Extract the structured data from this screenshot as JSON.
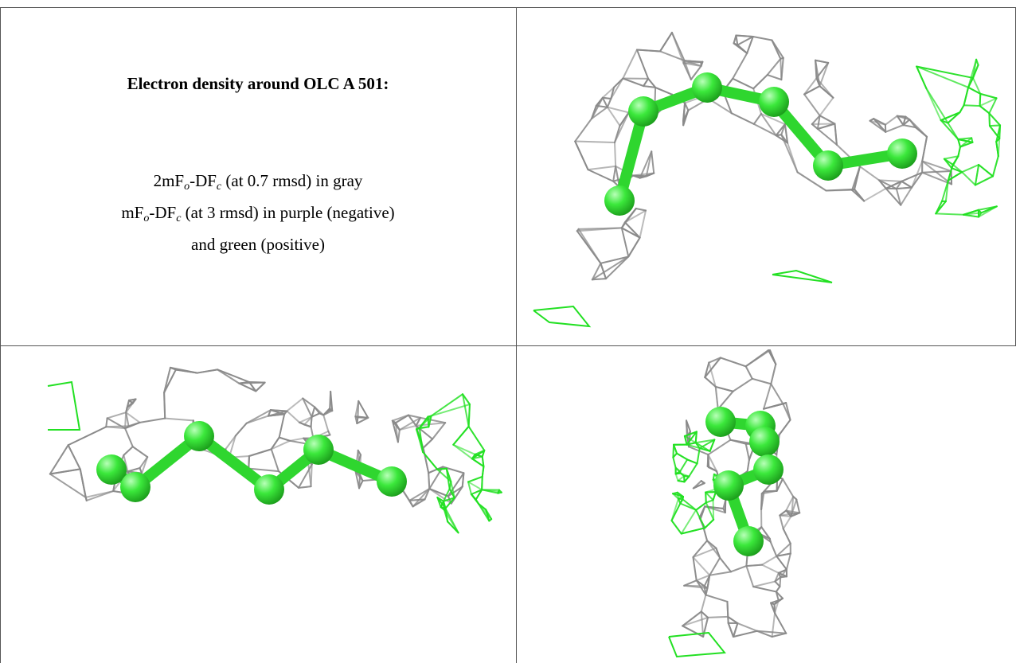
{
  "caption": {
    "title": "Electron density around OLC A 501:",
    "lines": [
      [
        "2mF",
        "o",
        "-DF",
        "c",
        " (at 0.7 rmsd) in gray"
      ],
      [
        "mF",
        "o",
        "-DF",
        "c",
        " (at 3 rmsd) in purple (negative)"
      ],
      [
        "and green (positive)"
      ]
    ]
  }
}
